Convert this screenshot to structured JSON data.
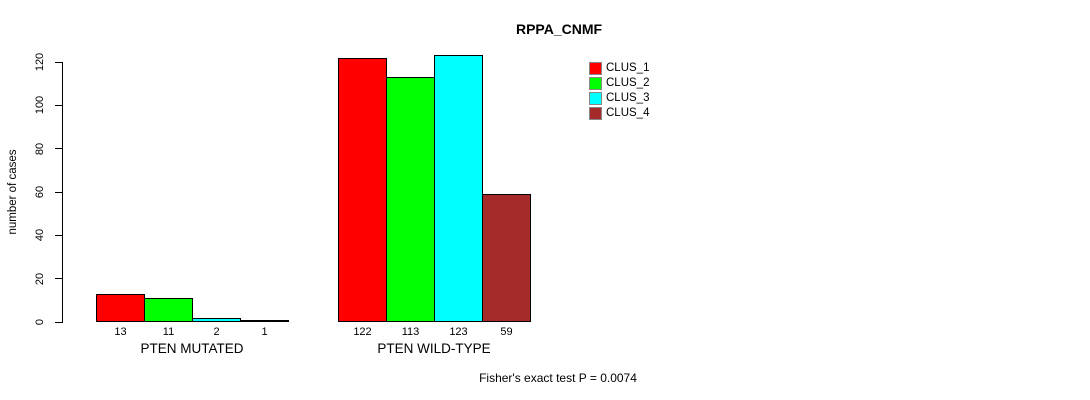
{
  "chart_data": {
    "type": "bar",
    "title": "RPPA_CNMF",
    "ylabel": "number of cases",
    "xlabel": "",
    "ylim": [
      0,
      120
    ],
    "yticks": [
      0,
      20,
      40,
      60,
      80,
      100,
      120
    ],
    "categories": [
      "PTEN MUTATED",
      "PTEN WILD-TYPE"
    ],
    "series": [
      {
        "name": "CLUS_1",
        "color": "#FF0000",
        "values": [
          13,
          122
        ]
      },
      {
        "name": "CLUS_2",
        "color": "#00FF00",
        "values": [
          11,
          113
        ]
      },
      {
        "name": "CLUS_3",
        "color": "#00FFFF",
        "values": [
          2,
          123
        ]
      },
      {
        "name": "CLUS_4",
        "color": "#A52A2A",
        "values": [
          1,
          59
        ]
      }
    ],
    "bar_value_labels_shown": true,
    "legend_position": "top-right",
    "grid": false,
    "annotation": "Fisher's exact test P = 0.0074"
  }
}
